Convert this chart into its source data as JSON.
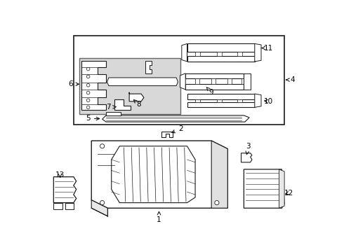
{
  "bg_color": "#ffffff",
  "line_color": "#1a1a1a",
  "text_color": "#000000",
  "figsize": [
    4.9,
    3.6
  ],
  "dpi": 100
}
